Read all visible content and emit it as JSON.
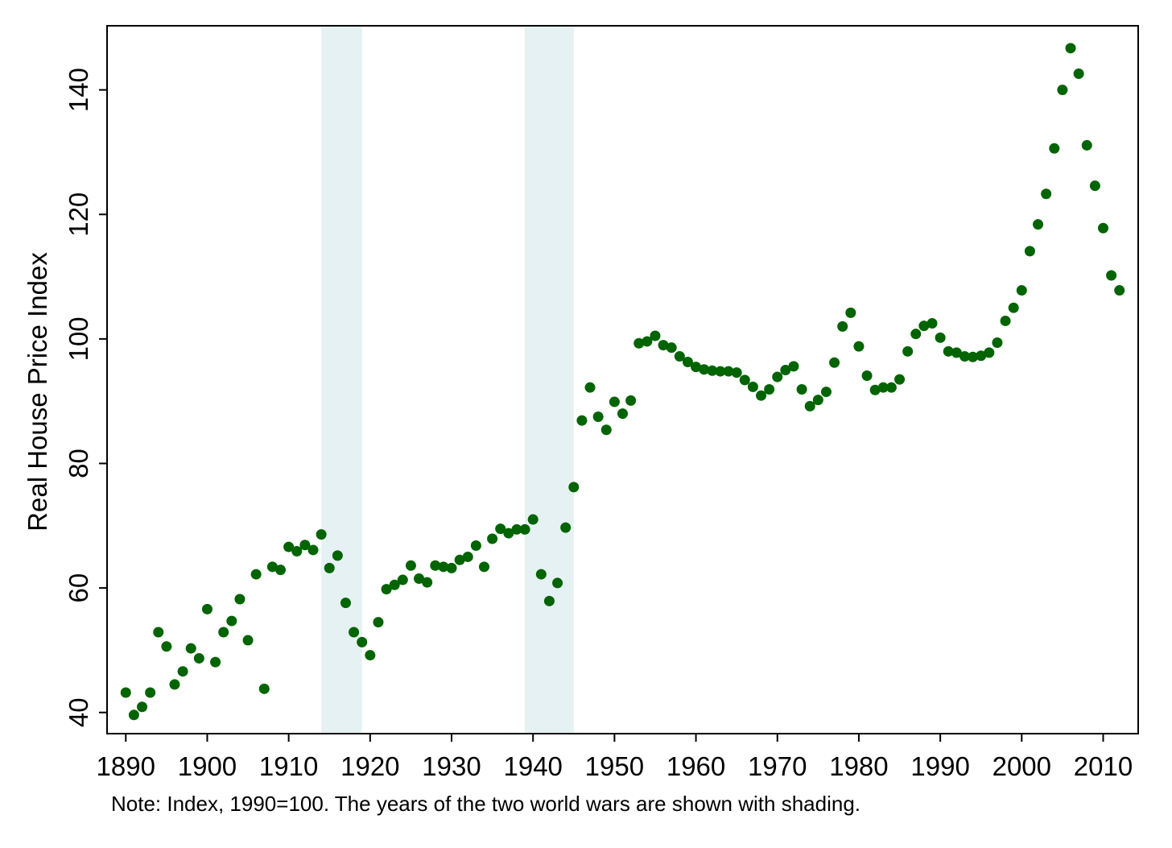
{
  "chart_data": {
    "type": "scatter",
    "title": "",
    "xlabel": "",
    "ylabel": "Real House Price Index",
    "xlim": [
      1887.7,
      2014.3
    ],
    "ylim": [
      36.6,
      150.3
    ],
    "xticks": [
      1890,
      1900,
      1910,
      1920,
      1930,
      1940,
      1950,
      1960,
      1970,
      1980,
      1990,
      2000,
      2010
    ],
    "yticks": [
      40,
      60,
      80,
      100,
      120,
      140
    ],
    "grid": false,
    "legend": "none",
    "marker_color": "#006400",
    "shading_color": "#e6f1f3",
    "shaded_periods": [
      [
        1914,
        1919
      ],
      [
        1939,
        1945
      ]
    ],
    "series": [
      {
        "x": [
          1890,
          1891,
          1892,
          1893,
          1894,
          1895,
          1896,
          1897,
          1898,
          1899,
          1900,
          1901,
          1902,
          1903,
          1904,
          1905,
          1906,
          1907,
          1908,
          1909,
          1910,
          1911,
          1912,
          1913,
          1914,
          1915,
          1916,
          1917,
          1918,
          1919,
          1920,
          1921,
          1922,
          1923,
          1924,
          1925,
          1926,
          1927,
          1928,
          1929,
          1930,
          1931,
          1932,
          1933,
          1934,
          1935,
          1936,
          1937,
          1938,
          1939,
          1940,
          1941,
          1942,
          1943,
          1944,
          1945,
          1946,
          1947,
          1948,
          1949,
          1950,
          1951,
          1952,
          1953,
          1954,
          1955,
          1956,
          1957,
          1958,
          1959,
          1960,
          1961,
          1962,
          1963,
          1964,
          1965,
          1966,
          1967,
          1968,
          1969,
          1970,
          1971,
          1972,
          1973,
          1974,
          1975,
          1976,
          1977,
          1978,
          1979,
          1980,
          1981,
          1982,
          1983,
          1984,
          1985,
          1986,
          1987,
          1988,
          1989,
          1990,
          1991,
          1992,
          1993,
          1994,
          1995,
          1996,
          1997,
          1998,
          1999,
          2000,
          2001,
          2002,
          2003,
          2004,
          2005,
          2006,
          2007,
          2008,
          2009,
          2010,
          2011,
          2012
        ],
        "y": [
          43.2,
          39.6,
          40.9,
          43.2,
          52.9,
          50.6,
          44.5,
          46.6,
          50.3,
          48.7,
          56.6,
          48.1,
          52.9,
          54.7,
          58.2,
          51.6,
          62.2,
          43.8,
          63.4,
          62.9,
          66.6,
          65.9,
          66.9,
          66.1,
          68.6,
          63.2,
          65.2,
          57.6,
          52.9,
          51.3,
          49.2,
          54.5,
          59.8,
          60.5,
          61.3,
          63.6,
          61.5,
          60.9,
          63.6,
          63.4,
          63.2,
          64.5,
          65.0,
          66.8,
          63.4,
          67.9,
          69.5,
          68.8,
          69.4,
          69.4,
          71.0,
          62.2,
          57.9,
          60.8,
          69.7,
          76.2,
          86.9,
          92.2,
          87.5,
          85.4,
          89.9,
          88.0,
          90.1,
          99.3,
          99.6,
          100.5,
          99.0,
          98.6,
          97.2,
          96.3,
          95.5,
          95.1,
          94.9,
          94.8,
          94.8,
          94.6,
          93.4,
          92.3,
          90.9,
          91.9,
          93.9,
          95.0,
          95.6,
          91.9,
          89.2,
          90.2,
          91.5,
          96.2,
          102.0,
          104.2,
          98.8,
          94.1,
          91.8,
          92.2,
          92.2,
          93.5,
          98.0,
          100.8,
          102.1,
          102.5,
          100.2,
          98.0,
          97.8,
          97.2,
          97.1,
          97.3,
          97.8,
          99.4,
          102.9,
          105.0,
          107.8,
          114.1,
          118.4,
          123.3,
          130.6,
          140.0,
          146.7,
          142.6,
          131.1,
          124.6,
          117.8,
          110.2,
          107.8
        ]
      }
    ]
  },
  "note": "Note: Index, 1990=100. The years of the two world wars are shown with shading."
}
